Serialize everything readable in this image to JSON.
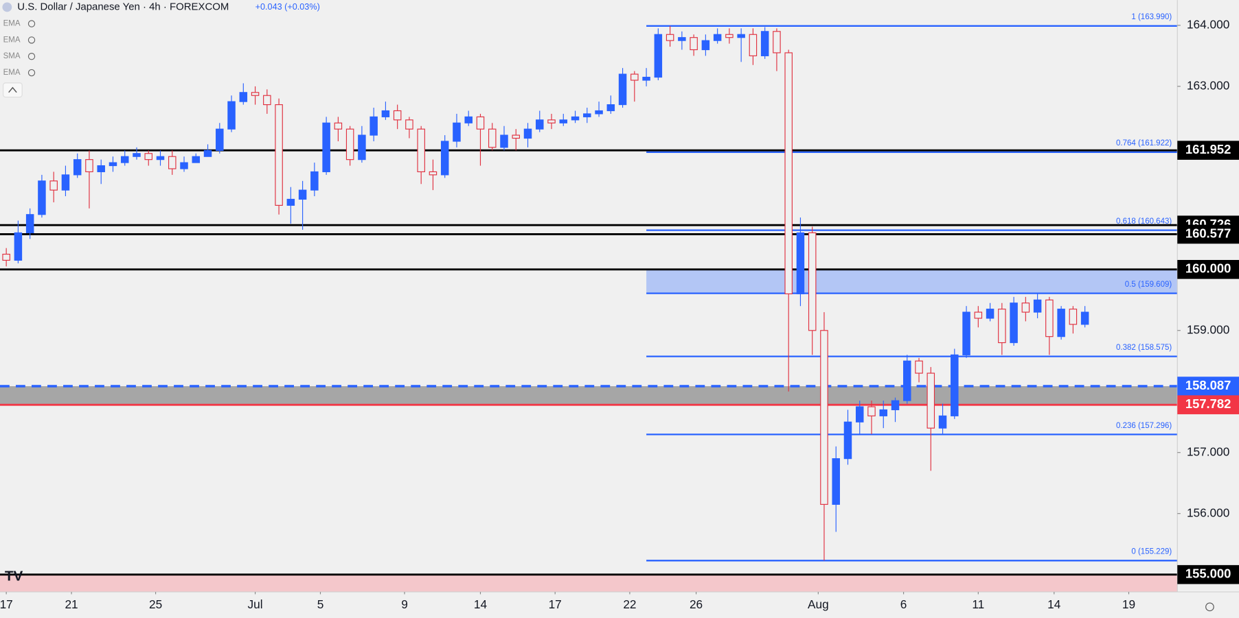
{
  "chart_data": {
    "type": "candlestick",
    "title": "U.S. Dollar / Japanese Yen · 4h · FOREXCOM",
    "change": "+0.043 (+0.03%)",
    "indicators": [
      "EMA",
      "EMA",
      "SMA",
      "EMA"
    ],
    "up_color": "#2962ff",
    "down_color": "#e0303f",
    "x": [
      0,
      1,
      2,
      3,
      4,
      5,
      6,
      7,
      8,
      9,
      10,
      11,
      12,
      13,
      14,
      15,
      16,
      17,
      18,
      19,
      20,
      21,
      22,
      23,
      24,
      25,
      26,
      27,
      28,
      29,
      30,
      31,
      32,
      33,
      34,
      35,
      36,
      37,
      38,
      39,
      40,
      41,
      42,
      43,
      44,
      45,
      46,
      47,
      48,
      49,
      50,
      51,
      52,
      53,
      54,
      55,
      56,
      57,
      58,
      59,
      60,
      61,
      62,
      63,
      64,
      65,
      66,
      67,
      68,
      69,
      70,
      71,
      72,
      73,
      74,
      75,
      76,
      77,
      78,
      79,
      80,
      81,
      82,
      83,
      84,
      85,
      86,
      87,
      88,
      89,
      90,
      91
    ],
    "open": [
      160.25,
      160.15,
      160.6,
      160.9,
      161.45,
      161.3,
      161.55,
      161.8,
      161.6,
      161.7,
      161.75,
      161.85,
      161.9,
      161.8,
      161.85,
      161.65,
      161.75,
      161.85,
      161.95,
      162.3,
      162.75,
      162.9,
      162.85,
      162.7,
      161.05,
      161.15,
      161.3,
      161.6,
      162.4,
      162.3,
      161.8,
      162.2,
      162.5,
      162.6,
      162.45,
      162.3,
      161.6,
      161.55,
      162.1,
      162.4,
      162.5,
      162.3,
      162.0,
      162.2,
      162.15,
      162.3,
      162.45,
      162.4,
      162.45,
      162.5,
      162.55,
      162.6,
      162.7,
      163.2,
      163.1,
      163.15,
      163.85,
      163.75,
      163.8,
      163.6,
      163.75,
      163.85,
      163.8,
      163.85,
      163.5,
      163.9,
      163.55,
      159.6,
      160.6,
      159.0,
      156.15,
      156.9,
      157.5,
      157.75,
      157.6,
      157.7,
      157.85,
      158.5,
      158.3,
      157.4,
      157.6,
      158.6,
      159.3,
      159.2,
      159.35,
      158.8,
      159.45,
      159.3,
      159.5,
      158.9,
      159.35,
      159.1
    ],
    "high": [
      160.35,
      160.8,
      161.0,
      161.55,
      161.6,
      161.7,
      161.9,
      161.95,
      161.8,
      161.85,
      161.95,
      162.0,
      161.95,
      161.95,
      161.95,
      161.85,
      161.9,
      162.05,
      162.4,
      162.85,
      163.05,
      163.0,
      162.95,
      162.8,
      161.35,
      161.45,
      161.75,
      162.5,
      162.5,
      162.35,
      162.35,
      162.65,
      162.75,
      162.7,
      162.5,
      162.35,
      161.8,
      162.2,
      162.55,
      162.6,
      162.55,
      162.4,
      162.35,
      162.3,
      162.4,
      162.6,
      162.55,
      162.55,
      162.6,
      162.65,
      162.75,
      162.85,
      163.3,
      163.25,
      163.3,
      163.95,
      163.99,
      163.9,
      163.85,
      163.85,
      163.95,
      163.95,
      163.95,
      163.95,
      163.97,
      163.95,
      163.6,
      160.85,
      160.7,
      159.3,
      157.1,
      157.7,
      157.85,
      157.85,
      157.85,
      157.9,
      158.6,
      158.55,
      158.4,
      157.8,
      158.7,
      159.4,
      159.4,
      159.45,
      159.45,
      159.55,
      159.55,
      159.6,
      159.55,
      159.4,
      159.4,
      159.4
    ],
    "low": [
      160.05,
      160.1,
      160.5,
      160.85,
      161.1,
      161.2,
      161.5,
      161.0,
      161.4,
      161.6,
      161.7,
      161.8,
      161.7,
      161.7,
      161.55,
      161.6,
      161.75,
      161.85,
      161.9,
      162.25,
      162.7,
      162.7,
      162.55,
      160.9,
      160.75,
      160.65,
      161.2,
      161.55,
      162.1,
      161.7,
      161.75,
      162.1,
      162.45,
      162.3,
      162.15,
      161.4,
      161.3,
      161.5,
      162.0,
      162.35,
      161.7,
      161.95,
      161.95,
      161.95,
      162.0,
      162.25,
      162.3,
      162.35,
      162.4,
      162.4,
      162.5,
      162.55,
      162.65,
      162.75,
      163.0,
      163.1,
      163.65,
      163.6,
      163.5,
      163.5,
      163.7,
      163.7,
      163.4,
      163.35,
      163.45,
      163.25,
      158.0,
      159.4,
      158.6,
      155.23,
      155.7,
      156.8,
      157.3,
      157.3,
      157.4,
      157.5,
      157.8,
      158.15,
      156.7,
      157.3,
      157.55,
      158.55,
      159.05,
      159.15,
      158.6,
      158.75,
      159.15,
      159.2,
      158.6,
      158.85,
      158.95,
      159.05
    ],
    "close": [
      160.15,
      160.6,
      160.9,
      161.45,
      161.3,
      161.55,
      161.8,
      161.6,
      161.7,
      161.75,
      161.85,
      161.9,
      161.8,
      161.85,
      161.65,
      161.75,
      161.85,
      161.95,
      162.3,
      162.75,
      162.9,
      162.85,
      162.7,
      161.05,
      161.15,
      161.3,
      161.6,
      162.4,
      162.3,
      161.8,
      162.2,
      162.5,
      162.6,
      162.45,
      162.3,
      161.6,
      161.55,
      162.1,
      162.4,
      162.5,
      162.3,
      162.0,
      162.2,
      162.15,
      162.3,
      162.45,
      162.4,
      162.45,
      162.5,
      162.55,
      162.6,
      162.7,
      163.2,
      163.1,
      163.15,
      163.85,
      163.75,
      163.8,
      163.6,
      163.75,
      163.85,
      163.8,
      163.85,
      163.5,
      163.9,
      163.55,
      159.6,
      160.6,
      159.0,
      156.15,
      156.9,
      157.5,
      157.75,
      157.6,
      157.7,
      157.85,
      158.5,
      158.3,
      157.4,
      157.6,
      158.6,
      159.3,
      159.2,
      159.35,
      158.8,
      159.45,
      159.3,
      159.5,
      158.9,
      159.35,
      159.1,
      159.3
    ],
    "xlim": [
      -0.53,
      98.8
    ],
    "xticks": [
      {
        "value": 0,
        "label": "17"
      },
      {
        "value": 5.5,
        "label": "21"
      },
      {
        "value": 12.6,
        "label": "25"
      },
      {
        "value": 21,
        "label": "Jul"
      },
      {
        "value": 26.5,
        "label": "5"
      },
      {
        "value": 33.6,
        "label": "9"
      },
      {
        "value": 40,
        "label": "14"
      },
      {
        "value": 46.3,
        "label": "17"
      },
      {
        "value": 52.6,
        "label": "22"
      },
      {
        "value": 58.2,
        "label": "26"
      },
      {
        "value": 68.5,
        "label": "Aug"
      },
      {
        "value": 75.7,
        "label": "6"
      },
      {
        "value": 82,
        "label": "11"
      },
      {
        "value": 88.4,
        "label": "14"
      },
      {
        "value": 94.7,
        "label": "19"
      }
    ],
    "ylim": [
      154.716,
      164.414
    ],
    "yticks": [
      {
        "value": 156,
        "label": "156.000"
      },
      {
        "value": 157,
        "label": "157.000"
      },
      {
        "value": 159,
        "label": "159.000"
      },
      {
        "value": 163,
        "label": "163.000"
      },
      {
        "value": 164,
        "label": "164.000"
      }
    ],
    "levels": [
      {
        "value": 161.952,
        "label": "161.952",
        "color": "#000000"
      },
      {
        "value": 160.726,
        "label": "160.726",
        "color": "#000000"
      },
      {
        "value": 160.577,
        "label": "160.577",
        "color": "#000000"
      },
      {
        "value": 160.0,
        "label": "160.000",
        "color": "#000000"
      },
      {
        "value": 158.087,
        "label": "158.087",
        "color": "#2962ff",
        "dashed": true
      },
      {
        "value": 157.782,
        "label": "157.782",
        "color": "#f23645"
      },
      {
        "value": 155.0,
        "label": "155.000",
        "color": "#000000"
      }
    ],
    "zones": [
      {
        "from": 157.782,
        "to": 158.087,
        "color": "#a6a6a6"
      },
      {
        "from": 159.609,
        "to": 160.0,
        "color": "#b3c6f5",
        "x_from": 54
      },
      {
        "from": 154.716,
        "to": 155.0,
        "color": "#f4c7cb"
      }
    ],
    "fib_start": 54,
    "fib_levels": [
      {
        "value": 163.99,
        "label": "1 (163.990)"
      },
      {
        "value": 161.922,
        "label": "0.764 (161.922)"
      },
      {
        "value": 160.643,
        "label": "0.618 (160.643)"
      },
      {
        "value": 159.609,
        "label": "0.5 (159.609)"
      },
      {
        "value": 158.575,
        "label": "0.382 (158.575)"
      },
      {
        "value": 157.296,
        "label": "0.236 (157.296)"
      },
      {
        "value": 155.229,
        "label": "0 (155.229)"
      }
    ]
  }
}
